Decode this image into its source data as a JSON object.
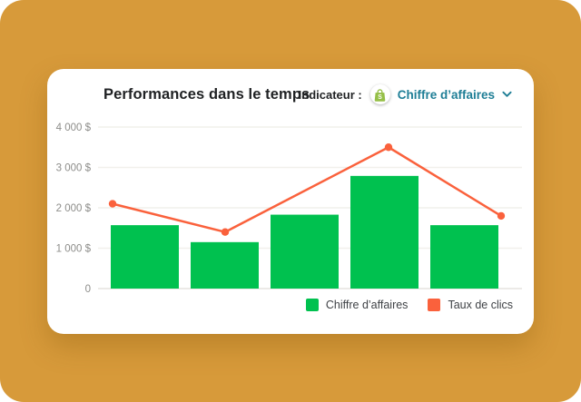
{
  "header": {
    "title": "Performances dans le temps",
    "indicator_label": "Indicateur :",
    "indicator_value": "Chiffre d’affaires"
  },
  "chart_data": {
    "type": "bar",
    "title": "Performances dans le temps",
    "xlabel": "",
    "ylabel": "",
    "x_tick_labels": [],
    "ylim": [
      0,
      4000
    ],
    "grid": "horizontal",
    "legend_position": "bottom-right",
    "y_ticks": [
      {
        "value": 4000,
        "label": "4 000 $"
      },
      {
        "value": 3000,
        "label": "3 000 $"
      },
      {
        "value": 2000,
        "label": "2 000 $"
      },
      {
        "value": 1000,
        "label": "1 000 $"
      },
      {
        "value": 0,
        "label": "0"
      }
    ],
    "series": [
      {
        "name": "Chiffre d’affaires",
        "type": "bar",
        "color": "#00C14F",
        "values": [
          1570,
          1150,
          1830,
          2790,
          1570
        ]
      },
      {
        "name": "Taux de clics",
        "type": "line",
        "color": "#FA613C",
        "values": [
          2100,
          1400,
          3500,
          1800
        ],
        "note": "4 marked points; the segment between points 2 and 3 passes straight over the third bar"
      }
    ]
  },
  "legend": {
    "items": [
      {
        "label": "Chiffre d’affaires",
        "color": "#00C14F"
      },
      {
        "label": "Taux de clics",
        "color": "#FA613C"
      }
    ]
  },
  "colors": {
    "page_background": "#D79A3A",
    "card_background": "#FFFFFF",
    "title_text": "#1F2123",
    "indicator_label_text": "#1F2123",
    "indicator_value_text": "#1E7E96",
    "axis_label_text": "#8D8D8A",
    "gridline": "#F1F0EC",
    "baseline": "#E6E4DF",
    "shopify_green": "#95BF47"
  }
}
